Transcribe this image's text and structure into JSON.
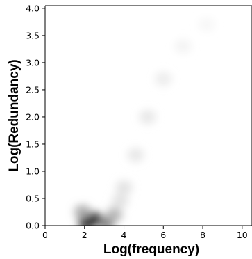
{
  "chart_data": {
    "type": "heatmap",
    "title": "",
    "xlabel": "Log(frequency)",
    "ylabel": "Log(Redundancy)",
    "xlim": [
      0,
      10.5
    ],
    "ylim": [
      0,
      4.05
    ],
    "x_ticks": [
      0,
      2,
      4,
      6,
      8,
      10
    ],
    "y_ticks": [
      0.0,
      0.5,
      1.0,
      1.5,
      2.0,
      2.5,
      3.0,
      3.5,
      4.0
    ],
    "x_tick_labels": [
      "0",
      "2",
      "4",
      "6",
      "8",
      "10"
    ],
    "y_tick_labels": [
      "0.0",
      "0.5",
      "1.0",
      "1.5",
      "2.0",
      "2.5",
      "3.0",
      "3.5",
      "4.0"
    ],
    "colormap": "Greys",
    "grid": false,
    "density_peaks": [
      {
        "x": 2.1,
        "y": 0.06,
        "density": 1.0
      },
      {
        "x": 2.5,
        "y": 0.12,
        "density": 0.85
      },
      {
        "x": 3.1,
        "y": 0.04,
        "density": 0.5
      },
      {
        "x": 3.5,
        "y": 0.2,
        "density": 0.3
      },
      {
        "x": 1.9,
        "y": 0.25,
        "density": 0.35
      },
      {
        "x": 3.8,
        "y": 0.45,
        "density": 0.12
      },
      {
        "x": 4.0,
        "y": 0.7,
        "density": 0.12
      },
      {
        "x": 4.6,
        "y": 1.3,
        "density": 0.1
      },
      {
        "x": 5.2,
        "y": 2.0,
        "density": 0.1
      },
      {
        "x": 6.0,
        "y": 2.7,
        "density": 0.08
      },
      {
        "x": 7.0,
        "y": 3.3,
        "density": 0.05
      },
      {
        "x": 8.2,
        "y": 3.7,
        "density": 0.03
      }
    ]
  }
}
